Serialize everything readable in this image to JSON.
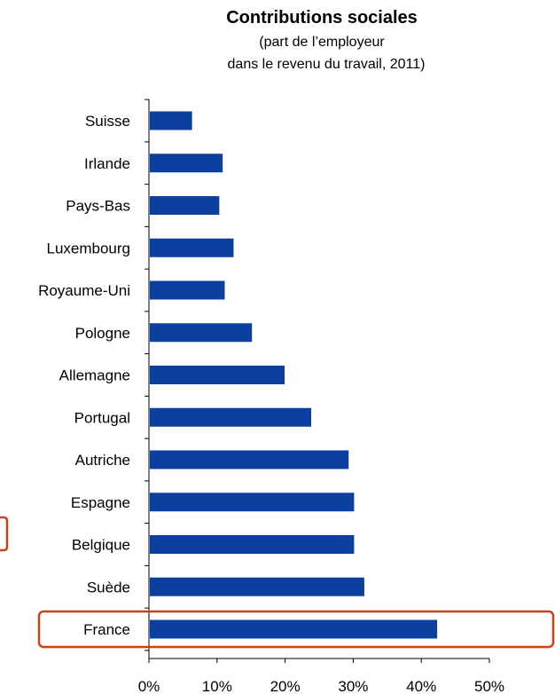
{
  "chart_data": {
    "type": "bar",
    "orientation": "horizontal",
    "title": "Contributions sociales",
    "subtitle_lines": [
      "(part de l’employeur",
      "dans le revenu du travail, 2011)"
    ],
    "categories": [
      "Suisse",
      "Irlande",
      "Pays-Bas",
      "Luxembourg",
      "Royaume-Uni",
      "Pologne",
      "Allemagne",
      "Portugal",
      "Autriche",
      "Espagne",
      "Belgique",
      "Suède",
      "France"
    ],
    "values": [
      6.2,
      10.7,
      10.2,
      12.3,
      11.0,
      15.0,
      19.8,
      23.7,
      29.2,
      30.0,
      30.0,
      31.5,
      42.2
    ],
    "xlim": [
      0,
      50
    ],
    "xticks": [
      "0%",
      "10%",
      "20%",
      "30%",
      "40%",
      "50%"
    ],
    "highlighted_category": "France",
    "bar_color": "#0b3fa0",
    "highlight_color": "#c0441c",
    "grid": false
  }
}
